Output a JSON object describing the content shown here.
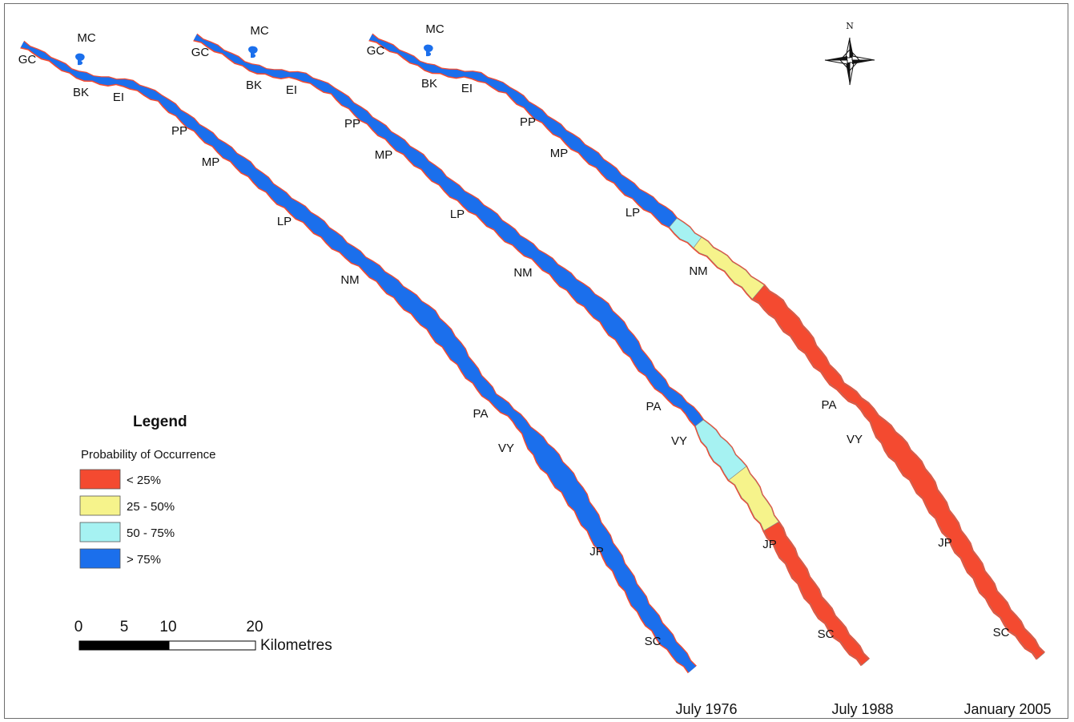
{
  "colors": {
    "lt25": "#f44a30",
    "p25_50": "#f6f38b",
    "p50_75": "#a6f2f2",
    "gt75": "#1b6fec",
    "outline": "#888888"
  },
  "north_arrow": {
    "icon": "compass-rose-icon",
    "letter": "N"
  },
  "legend": {
    "title": "Legend",
    "subtitle": "Probability of Occurrence",
    "items": [
      {
        "label": "< 25%",
        "color": "#f44a30"
      },
      {
        "label": "25 - 50%",
        "color": "#f6f38b"
      },
      {
        "label": "50 - 75%",
        "color": "#a6f2f2"
      },
      {
        "label": "> 75%",
        "color": "#1b6fec"
      }
    ]
  },
  "scale_bar": {
    "ticks": [
      "0",
      "5",
      "10",
      "20"
    ],
    "tick_values_km": [
      0,
      5,
      10,
      20
    ],
    "unit": "Kilometres"
  },
  "panels": [
    {
      "date": "July 1976",
      "class_fractions": [
        {
          "class": "> 75%",
          "from": 0.0,
          "to": 1.0
        }
      ],
      "labels": [
        "MC",
        "GC",
        "BK",
        "EI",
        "PP",
        "MP",
        "LP",
        "NM",
        "PA",
        "VY",
        "JP",
        "SC"
      ]
    },
    {
      "date": "July 1988",
      "class_fractions": [
        {
          "class": "> 75%",
          "from": 0.0,
          "to": 0.69
        },
        {
          "class": "50 - 75%",
          "from": 0.69,
          "to": 0.76
        },
        {
          "class": "25 - 50%",
          "from": 0.76,
          "to": 0.82
        },
        {
          "class": "< 25%",
          "from": 0.82,
          "to": 1.0
        }
      ],
      "labels": [
        "MC",
        "GC",
        "BK",
        "EI",
        "PP",
        "MP",
        "LP",
        "NM",
        "PA",
        "VY",
        "JP",
        "SC"
      ]
    },
    {
      "date": "January 2005",
      "class_fractions": [
        {
          "class": "> 75%",
          "from": 0.0,
          "to": 0.385
        },
        {
          "class": "50 - 75%",
          "from": 0.385,
          "to": 0.42
        },
        {
          "class": "25 - 50%",
          "from": 0.42,
          "to": 0.5
        },
        {
          "class": "< 25%",
          "from": 0.5,
          "to": 1.0
        }
      ],
      "labels": [
        "MC",
        "GC",
        "BK",
        "EI",
        "PP",
        "MP",
        "LP",
        "NM",
        "PA",
        "VY",
        "JP",
        "SC"
      ]
    }
  ]
}
